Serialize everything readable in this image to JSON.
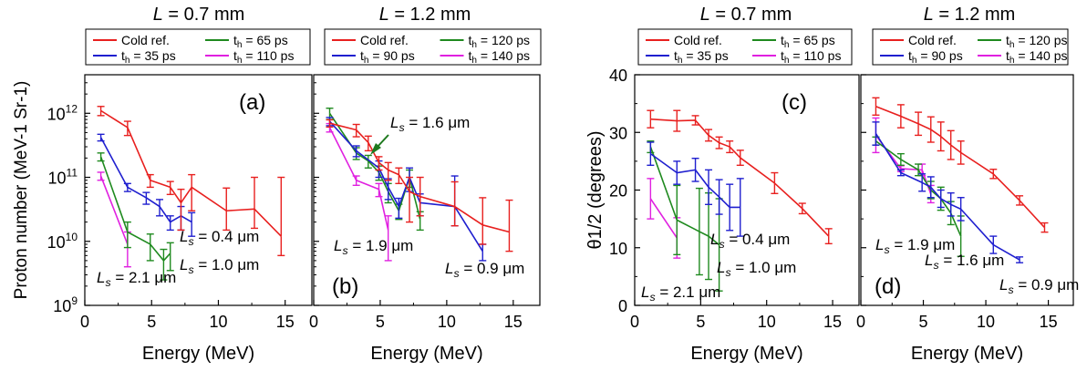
{
  "figure": {
    "colors": {
      "cold": "#e8201f",
      "c1": "#1f1fcf",
      "c2": "#1f8a1f",
      "c3": "#e020e0",
      "arrow": "#1f7a1f"
    },
    "shared_xlabel": "Energy (MeV)",
    "x_ticks": [
      "0",
      "5",
      "10",
      "15"
    ],
    "y_log_ticks": [
      "9",
      "10",
      "11",
      "12"
    ],
    "y_lin_ticks": [
      "0",
      "10",
      "20",
      "30",
      "40"
    ]
  },
  "chart_data": [
    {
      "id": "a",
      "type": "line",
      "title": "L = 0.7 mm",
      "panel_label": "(a)",
      "xlabel": "Energy (MeV)",
      "ylabel": "Proton number (MeV-1 Sr-1)",
      "xlim": [
        0,
        17
      ],
      "ylim": [
        1000000000.0,
        4000000000000.0
      ],
      "yscale": "log",
      "legend": "top",
      "series": [
        {
          "name": "Cold ref.",
          "color_key": "cold",
          "x": [
            1.2,
            3.2,
            4.9,
            6.4,
            7.2,
            8.0,
            10.6,
            12.7,
            14.7
          ],
          "y": [
            1100000000000.0,
            600000000000.0,
            90000000000.0,
            70000000000.0,
            40000000000.0,
            70000000000.0,
            30000000000.0,
            32000000000.0,
            12000000000.0
          ],
          "err": [
            180000000000.0,
            150000000000.0,
            20000000000.0,
            16000000000.0,
            25000000000.0,
            40000000000.0,
            38000000000.0,
            68000000000.0,
            88000000000.0
          ]
        },
        {
          "name": "th = 35 ps",
          "color_key": "c1",
          "x": [
            1.2,
            3.2,
            4.6,
            5.6,
            6.4,
            7.2,
            8.0
          ],
          "y": [
            420000000000.0,
            70000000000.0,
            48000000000.0,
            35000000000.0,
            20000000000.0,
            25000000000.0,
            20000000000.0
          ],
          "err": [
            50000000000.0,
            10000000000.0,
            10000000000.0,
            10000000000.0,
            5000000000.0,
            10000000000.0,
            8000000000.0
          ]
        },
        {
          "name": "th = 65 ps",
          "color_key": "c2",
          "x": [
            1.2,
            3.2,
            4.9,
            5.9,
            6.4
          ],
          "y": [
            210000000000.0,
            14000000000.0,
            9000000000.0,
            5000000000.0,
            6500000000.0
          ],
          "err": [
            30000000000.0,
            6000000000.0,
            4000000000.0,
            2500000000.0,
            3000000000.0
          ]
        },
        {
          "name": "th = 110 ps",
          "color_key": "c3",
          "x": [
            1.2,
            3.2
          ],
          "y": [
            105000000000.0,
            9000000000.0
          ],
          "err": [
            15000000000.0,
            5000000000.0
          ]
        }
      ],
      "annotations": [
        {
          "text": "Ls = 0.4 μm",
          "color_key": "c1"
        },
        {
          "text": "Ls = 1.0 μm",
          "color_key": "c2"
        },
        {
          "text": "Ls = 2.1 μm",
          "color_key": "c3"
        }
      ]
    },
    {
      "id": "b",
      "type": "line",
      "title": "L = 1.2 mm",
      "panel_label": "(b)",
      "xlabel": "Energy (MeV)",
      "xlim": [
        0,
        17
      ],
      "ylim": [
        1000000000.0,
        4000000000000.0
      ],
      "yscale": "log",
      "legend": "top",
      "series": [
        {
          "name": "Cold ref.",
          "color_key": "cold",
          "x": [
            1.2,
            3.2,
            4.1,
            4.9,
            5.6,
            6.4,
            7.2,
            8.0,
            10.6,
            12.7,
            14.7
          ],
          "y": [
            700000000000.0,
            550000000000.0,
            350000000000.0,
            170000000000.0,
            130000000000.0,
            110000000000.0,
            60000000000.0,
            50000000000.0,
            35000000000.0,
            18000000000.0,
            14000000000.0
          ],
          "err": [
            90000000000.0,
            120000000000.0,
            90000000000.0,
            40000000000.0,
            40000000000.0,
            30000000000.0,
            40000000000.0,
            50000000000.0,
            50000000000.0,
            30000000000.0,
            30000000000.0
          ]
        },
        {
          "name": "th = 90 ps",
          "color_key": "c1",
          "x": [
            1.2,
            3.2,
            4.9,
            5.6,
            6.4,
            7.2,
            8.0,
            10.6,
            12.7
          ],
          "y": [
            750000000000.0,
            260000000000.0,
            140000000000.0,
            70000000000.0,
            35000000000.0,
            100000000000.0,
            40000000000.0,
            35000000000.0,
            7000000000.0
          ],
          "err": [
            110000000000.0,
            50000000000.0,
            40000000000.0,
            25000000000.0,
            12000000000.0,
            40000000000.0,
            15000000000.0,
            70000000000.0,
            2000000000.0
          ]
        },
        {
          "name": "th = 120 ps",
          "color_key": "c2",
          "x": [
            1.2,
            3.2,
            4.1,
            4.9,
            5.6,
            6.4,
            7.2,
            8.0
          ],
          "y": [
            1000000000000.0,
            240000000000.0,
            180000000000.0,
            120000000000.0,
            60000000000.0,
            30000000000.0,
            100000000000.0,
            22000000000.0
          ],
          "err": [
            200000000000.0,
            50000000000.0,
            40000000000.0,
            30000000000.0,
            20000000000.0,
            8000000000.0,
            30000000000.0,
            7000000000.0
          ]
        },
        {
          "name": "th = 140 ps",
          "color_key": "c3",
          "x": [
            1.2,
            3.2,
            4.9,
            5.6
          ],
          "y": [
            600000000000.0,
            90000000000.0,
            65000000000.0,
            15000000000.0
          ],
          "err": [
            90000000000.0,
            15000000000.0,
            15000000000.0,
            10000000000.0
          ]
        }
      ],
      "annotations": [
        {
          "text": "Ls = 1.6 μm",
          "color_key": "c2"
        },
        {
          "text": "Ls = 1.9 μm",
          "color_key": "c3"
        },
        {
          "text": "Ls = 0.9 μm",
          "color_key": "c1"
        }
      ]
    },
    {
      "id": "c",
      "type": "line",
      "title": "L = 0.7 mm",
      "panel_label": "(c)",
      "xlabel": "Energy (MeV)",
      "ylabel": "θ1/2 (degrees)",
      "xlim": [
        0,
        17
      ],
      "ylim": [
        0,
        40
      ],
      "yscale": "linear",
      "legend": "top",
      "series": [
        {
          "name": "Cold ref.",
          "color_key": "cold",
          "x": [
            1.2,
            3.2,
            4.6,
            5.6,
            6.4,
            7.2,
            8.0,
            10.6,
            12.7,
            14.7
          ],
          "y": [
            32.3,
            32.0,
            32.1,
            29.5,
            28.2,
            27.5,
            25.6,
            21.2,
            16.8,
            12.0
          ],
          "err": [
            1.5,
            1.8,
            0.8,
            1.0,
            1.0,
            1.0,
            1.3,
            1.8,
            0.9,
            1.3
          ]
        },
        {
          "name": "th = 35 ps",
          "color_key": "c1",
          "x": [
            1.2,
            3.2,
            4.6,
            5.6,
            6.4,
            7.2,
            8.0
          ],
          "y": [
            26.3,
            23.0,
            23.5,
            20.5,
            18.8,
            17.0,
            17.0
          ],
          "err": [
            2.0,
            2.0,
            2.0,
            3.0,
            3.0,
            4.0,
            5.0
          ]
        },
        {
          "name": "th = 65 ps",
          "color_key": "c2",
          "x": [
            1.2,
            3.2,
            4.9,
            5.6,
            6.4
          ],
          "y": [
            27.5,
            14.8,
            12.8,
            12.0,
            10.5
          ],
          "err": [
            1.0,
            6.0,
            7.5,
            7.5,
            8.0
          ]
        },
        {
          "name": "th = 110 ps",
          "color_key": "c3",
          "x": [
            1.2,
            3.2
          ],
          "y": [
            18.5,
            11.7
          ],
          "err": [
            3.5,
            3.5
          ]
        }
      ],
      "annotations": [
        {
          "text": "Ls = 0.4 μm",
          "color_key": "c1"
        },
        {
          "text": "Ls = 1.0 μm",
          "color_key": "c2"
        },
        {
          "text": "Ls = 2.1 μm",
          "color_key": "c3"
        }
      ]
    },
    {
      "id": "d",
      "type": "line",
      "title": "L = 1.2 mm",
      "panel_label": "(d)",
      "xlabel": "Energy (MeV)",
      "xlim": [
        0,
        17
      ],
      "ylim": [
        0,
        40
      ],
      "yscale": "linear",
      "legend": "top",
      "series": [
        {
          "name": "Cold ref.",
          "color_key": "cold",
          "x": [
            1.2,
            3.2,
            4.6,
            5.6,
            6.4,
            7.2,
            8.0,
            10.6,
            12.7,
            14.7
          ],
          "y": [
            34.5,
            32.8,
            31.5,
            30.5,
            29.3,
            27.8,
            26.5,
            22.8,
            18.2,
            13.5
          ],
          "err": [
            1.5,
            2.0,
            2.0,
            2.2,
            2.5,
            2.5,
            2.0,
            0.8,
            0.8,
            0.8
          ]
        },
        {
          "name": "th = 90 ps",
          "color_key": "c1",
          "x": [
            1.2,
            3.2,
            4.9,
            5.6,
            6.4,
            7.2,
            8.0,
            10.6,
            12.7
          ],
          "y": [
            29.8,
            23.0,
            21.3,
            20.5,
            18.5,
            17.5,
            16.7,
            10.5,
            7.9
          ],
          "err": [
            2.0,
            0.5,
            1.5,
            1.8,
            1.5,
            2.0,
            2.0,
            1.5,
            0.5
          ]
        },
        {
          "name": "th = 120 ps",
          "color_key": "c2",
          "x": [
            1.2,
            3.2,
            4.6,
            5.6,
            6.4,
            7.2,
            8.0
          ],
          "y": [
            28.5,
            25.3,
            23.5,
            20.0,
            18.5,
            16.0,
            12.0
          ],
          "err": [
            0.7,
            1.0,
            1.0,
            1.5,
            2.0,
            2.0,
            3.5
          ]
        },
        {
          "name": "th = 140 ps",
          "color_key": "c3",
          "x": [
            1.2,
            3.2,
            4.9,
            5.6
          ],
          "y": [
            29.5,
            23.7,
            23.5,
            19.3
          ],
          "err": [
            3.0,
            0.5,
            1.0,
            1.5
          ]
        }
      ],
      "annotations": [
        {
          "text": "Ls = 1.9 μm",
          "color_key": "c3"
        },
        {
          "text": "Ls = 1.6 μm",
          "color_key": "c2"
        },
        {
          "text": "Ls = 0.9 μm",
          "color_key": "c1"
        }
      ]
    }
  ]
}
